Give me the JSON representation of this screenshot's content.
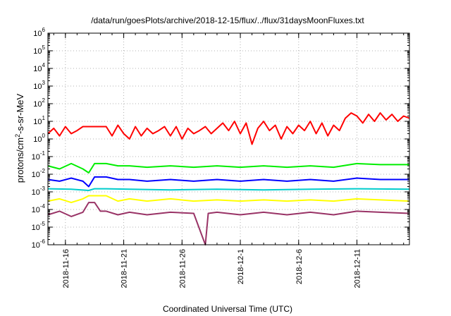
{
  "chart_data": {
    "type": "line",
    "title": "/data/run/goesPlots/archive/2018-12-15/flux/../flux/31daysMoonFluxes.txt",
    "xlabel": "Coordinated Universal Time (UTC)",
    "ylabel": {
      "base": "protons/cm",
      "sup": "2",
      "rest": "-s-sr-MeV"
    },
    "yscale": "log",
    "ylim_exp": [
      -6,
      6
    ],
    "yticks": [
      {
        "base": "10",
        "exp": "-6"
      },
      {
        "base": "10",
        "exp": "-5"
      },
      {
        "base": "10",
        "exp": "-4"
      },
      {
        "base": "10",
        "exp": "-3"
      },
      {
        "base": "10",
        "exp": "-2"
      },
      {
        "base": "10",
        "exp": "-1"
      },
      {
        "base": "10",
        "exp": "0"
      },
      {
        "base": "10",
        "exp": "1"
      },
      {
        "base": "10",
        "exp": "2"
      },
      {
        "base": "10",
        "exp": "3"
      },
      {
        "base": "10",
        "exp": "4"
      },
      {
        "base": "10",
        "exp": "5"
      },
      {
        "base": "10",
        "exp": "6"
      }
    ],
    "xlim": [
      "2018-11-14T12:00",
      "2018-12-15T12:00"
    ],
    "xticks": [
      "2018-11-16",
      "2018-11-21",
      "2018-11-26",
      "2018-12-1",
      "2018-12-6",
      "2018-12-11"
    ],
    "grid": true,
    "series": [
      {
        "color": "#ff0000",
        "points": [
          [
            "2018-11-14T12:00",
            2
          ],
          [
            "2018-11-15T00:00",
            4
          ],
          [
            "2018-11-15T12:00",
            1.5
          ],
          [
            "2018-11-16T00:00",
            5
          ],
          [
            "2018-11-16T12:00",
            2
          ],
          [
            "2018-11-17T00:00",
            3
          ],
          [
            "2018-11-17T12:00",
            5
          ],
          [
            "2018-11-18T12:00",
            5
          ],
          [
            "2018-11-19T12:00",
            5
          ],
          [
            "2018-11-20T00:00",
            1.5
          ],
          [
            "2018-11-20T12:00",
            6
          ],
          [
            "2018-11-21T00:00",
            2
          ],
          [
            "2018-11-21T12:00",
            1
          ],
          [
            "2018-11-22T00:00",
            5
          ],
          [
            "2018-11-22T12:00",
            1.5
          ],
          [
            "2018-11-23T00:00",
            4
          ],
          [
            "2018-11-23T12:00",
            2
          ],
          [
            "2018-11-24T00:00",
            3
          ],
          [
            "2018-11-24T12:00",
            5
          ],
          [
            "2018-11-25T00:00",
            1.5
          ],
          [
            "2018-11-25T12:00",
            5
          ],
          [
            "2018-11-26T00:00",
            1
          ],
          [
            "2018-11-26T12:00",
            4
          ],
          [
            "2018-11-27T00:00",
            2
          ],
          [
            "2018-11-27T12:00",
            3
          ],
          [
            "2018-11-28T00:00",
            5
          ],
          [
            "2018-11-28T12:00",
            2
          ],
          [
            "2018-11-29T00:00",
            4
          ],
          [
            "2018-11-29T12:00",
            8
          ],
          [
            "2018-11-30T00:00",
            3
          ],
          [
            "2018-11-30T12:00",
            10
          ],
          [
            "2018-12-01T00:00",
            2
          ],
          [
            "2018-12-01T12:00",
            8
          ],
          [
            "2018-12-02T00:00",
            0.5
          ],
          [
            "2018-12-02T12:00",
            4
          ],
          [
            "2018-12-03T00:00",
            10
          ],
          [
            "2018-12-03T12:00",
            3
          ],
          [
            "2018-12-04T00:00",
            6
          ],
          [
            "2018-12-04T12:00",
            1
          ],
          [
            "2018-12-05T00:00",
            5
          ],
          [
            "2018-12-05T12:00",
            2
          ],
          [
            "2018-12-06T00:00",
            6
          ],
          [
            "2018-12-06T12:00",
            3
          ],
          [
            "2018-12-07T00:00",
            10
          ],
          [
            "2018-12-07T12:00",
            2
          ],
          [
            "2018-12-08T00:00",
            8
          ],
          [
            "2018-12-08T12:00",
            1.5
          ],
          [
            "2018-12-09T00:00",
            6
          ],
          [
            "2018-12-09T12:00",
            3
          ],
          [
            "2018-12-10T00:00",
            15
          ],
          [
            "2018-12-10T12:00",
            30
          ],
          [
            "2018-12-11T00:00",
            20
          ],
          [
            "2018-12-11T12:00",
            8
          ],
          [
            "2018-12-12T00:00",
            25
          ],
          [
            "2018-12-12T12:00",
            10
          ],
          [
            "2018-12-13T00:00",
            30
          ],
          [
            "2018-12-13T12:00",
            12
          ],
          [
            "2018-12-14T00:00",
            25
          ],
          [
            "2018-12-14T12:00",
            10
          ],
          [
            "2018-12-15T00:00",
            20
          ],
          [
            "2018-12-15T12:00",
            15
          ]
        ]
      },
      {
        "color": "#00ee00",
        "points": [
          [
            "2018-11-14T12:00",
            0.03
          ],
          [
            "2018-11-15T12:00",
            0.02
          ],
          [
            "2018-11-16T12:00",
            0.04
          ],
          [
            "2018-11-17T12:00",
            0.02
          ],
          [
            "2018-11-18T00:00",
            0.012
          ],
          [
            "2018-11-18T12:00",
            0.04
          ],
          [
            "2018-11-19T12:00",
            0.04
          ],
          [
            "2018-11-20T12:00",
            0.03
          ],
          [
            "2018-11-21T12:00",
            0.03
          ],
          [
            "2018-11-23T00:00",
            0.025
          ],
          [
            "2018-11-25T00:00",
            0.03
          ],
          [
            "2018-11-27T00:00",
            0.025
          ],
          [
            "2018-11-29T00:00",
            0.03
          ],
          [
            "2018-12-01T00:00",
            0.025
          ],
          [
            "2018-12-03T00:00",
            0.03
          ],
          [
            "2018-12-05T00:00",
            0.025
          ],
          [
            "2018-12-07T00:00",
            0.03
          ],
          [
            "2018-12-09T00:00",
            0.025
          ],
          [
            "2018-12-11T00:00",
            0.04
          ],
          [
            "2018-12-13T00:00",
            0.035
          ],
          [
            "2018-12-15T12:00",
            0.035
          ]
        ]
      },
      {
        "color": "#0000ff",
        "points": [
          [
            "2018-11-14T12:00",
            0.005
          ],
          [
            "2018-11-15T12:00",
            0.004
          ],
          [
            "2018-11-16T12:00",
            0.006
          ],
          [
            "2018-11-17T12:00",
            0.004
          ],
          [
            "2018-11-18T00:00",
            0.002
          ],
          [
            "2018-11-18T12:00",
            0.007
          ],
          [
            "2018-11-19T12:00",
            0.007
          ],
          [
            "2018-11-20T12:00",
            0.005
          ],
          [
            "2018-11-21T12:00",
            0.005
          ],
          [
            "2018-11-23T00:00",
            0.004
          ],
          [
            "2018-11-25T00:00",
            0.005
          ],
          [
            "2018-11-27T00:00",
            0.004
          ],
          [
            "2018-11-29T00:00",
            0.005
          ],
          [
            "2018-12-01T00:00",
            0.004
          ],
          [
            "2018-12-03T00:00",
            0.005
          ],
          [
            "2018-12-05T00:00",
            0.004
          ],
          [
            "2018-12-07T00:00",
            0.005
          ],
          [
            "2018-12-09T00:00",
            0.004
          ],
          [
            "2018-12-11T00:00",
            0.006
          ],
          [
            "2018-12-13T00:00",
            0.005
          ],
          [
            "2018-12-15T12:00",
            0.005
          ]
        ]
      },
      {
        "color": "#00cccc",
        "points": [
          [
            "2018-11-14T12:00",
            0.0015
          ],
          [
            "2018-11-16T12:00",
            0.0014
          ],
          [
            "2018-11-18T00:00",
            0.0012
          ],
          [
            "2018-11-18T12:00",
            0.0015
          ],
          [
            "2018-11-19T12:00",
            0.0015
          ],
          [
            "2018-11-21T12:00",
            0.0014
          ],
          [
            "2018-11-25T00:00",
            0.0013
          ],
          [
            "2018-11-29T00:00",
            0.0014
          ],
          [
            "2018-12-03T00:00",
            0.0013
          ],
          [
            "2018-12-07T00:00",
            0.0014
          ],
          [
            "2018-12-11T00:00",
            0.0015
          ],
          [
            "2018-12-15T12:00",
            0.0014
          ]
        ]
      },
      {
        "color": "#ffff00",
        "points": [
          [
            "2018-11-14T12:00",
            0.0003
          ],
          [
            "2018-11-15T12:00",
            0.0004
          ],
          [
            "2018-11-16T12:00",
            0.00025
          ],
          [
            "2018-11-17T12:00",
            0.0004
          ],
          [
            "2018-11-18T00:00",
            0.0006
          ],
          [
            "2018-11-18T12:00",
            0.0006
          ],
          [
            "2018-11-19T12:00",
            0.0006
          ],
          [
            "2018-11-20T12:00",
            0.0003
          ],
          [
            "2018-11-21T12:00",
            0.0004
          ],
          [
            "2018-11-23T00:00",
            0.0003
          ],
          [
            "2018-11-25T00:00",
            0.0004
          ],
          [
            "2018-11-27T00:00",
            0.0003
          ],
          [
            "2018-11-29T00:00",
            0.00035
          ],
          [
            "2018-12-01T00:00",
            0.0003
          ],
          [
            "2018-12-03T00:00",
            0.00035
          ],
          [
            "2018-12-05T00:00",
            0.0003
          ],
          [
            "2018-12-07T00:00",
            0.00035
          ],
          [
            "2018-12-09T00:00",
            0.0003
          ],
          [
            "2018-12-11T00:00",
            0.0004
          ],
          [
            "2018-12-13T00:00",
            0.00035
          ],
          [
            "2018-12-15T12:00",
            0.0003
          ]
        ]
      },
      {
        "color": "#993366",
        "points": [
          [
            "2018-11-14T12:00",
            5e-05
          ],
          [
            "2018-11-15T12:00",
            8e-05
          ],
          [
            "2018-11-16T12:00",
            4e-05
          ],
          [
            "2018-11-17T12:00",
            7e-05
          ],
          [
            "2018-11-18T00:00",
            0.00025
          ],
          [
            "2018-11-18T12:00",
            0.00025
          ],
          [
            "2018-11-19T00:00",
            8e-05
          ],
          [
            "2018-11-19T12:00",
            8e-05
          ],
          [
            "2018-11-20T12:00",
            5e-05
          ],
          [
            "2018-11-21T12:00",
            7e-05
          ],
          [
            "2018-11-23T00:00",
            5e-05
          ],
          [
            "2018-11-25T00:00",
            7e-05
          ],
          [
            "2018-11-27T00:00",
            6e-05
          ],
          [
            "2018-11-28T00:00",
            1e-06
          ],
          [
            "2018-11-28T06:00",
            6e-05
          ],
          [
            "2018-11-29T00:00",
            7e-05
          ],
          [
            "2018-12-01T00:00",
            5e-05
          ],
          [
            "2018-12-03T00:00",
            7e-05
          ],
          [
            "2018-12-05T00:00",
            5e-05
          ],
          [
            "2018-12-07T00:00",
            7e-05
          ],
          [
            "2018-12-09T00:00",
            5e-05
          ],
          [
            "2018-12-11T00:00",
            8e-05
          ],
          [
            "2018-12-13T00:00",
            7e-05
          ],
          [
            "2018-12-15T12:00",
            6e-05
          ]
        ]
      }
    ]
  }
}
